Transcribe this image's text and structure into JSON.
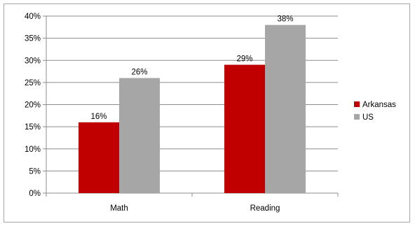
{
  "chart_data": {
    "type": "bar",
    "categories": [
      "Math",
      "Reading"
    ],
    "series": [
      {
        "name": "Arkansas",
        "values": [
          16,
          29
        ],
        "color": "#c00000",
        "labels": [
          "16%",
          "29%"
        ]
      },
      {
        "name": "US",
        "values": [
          26,
          38
        ],
        "color": "#a6a6a6",
        "labels": [
          "26%",
          "38%"
        ]
      }
    ],
    "title": "",
    "xlabel": "",
    "ylabel": "",
    "ylim": [
      0,
      40
    ],
    "yticks": [
      0,
      5,
      10,
      15,
      20,
      25,
      30,
      35,
      40
    ],
    "ytick_labels": [
      "0%",
      "5%",
      "10%",
      "15%",
      "20%",
      "25%",
      "30%",
      "35%",
      "40%"
    ],
    "grid": true,
    "legend_position": "right"
  }
}
